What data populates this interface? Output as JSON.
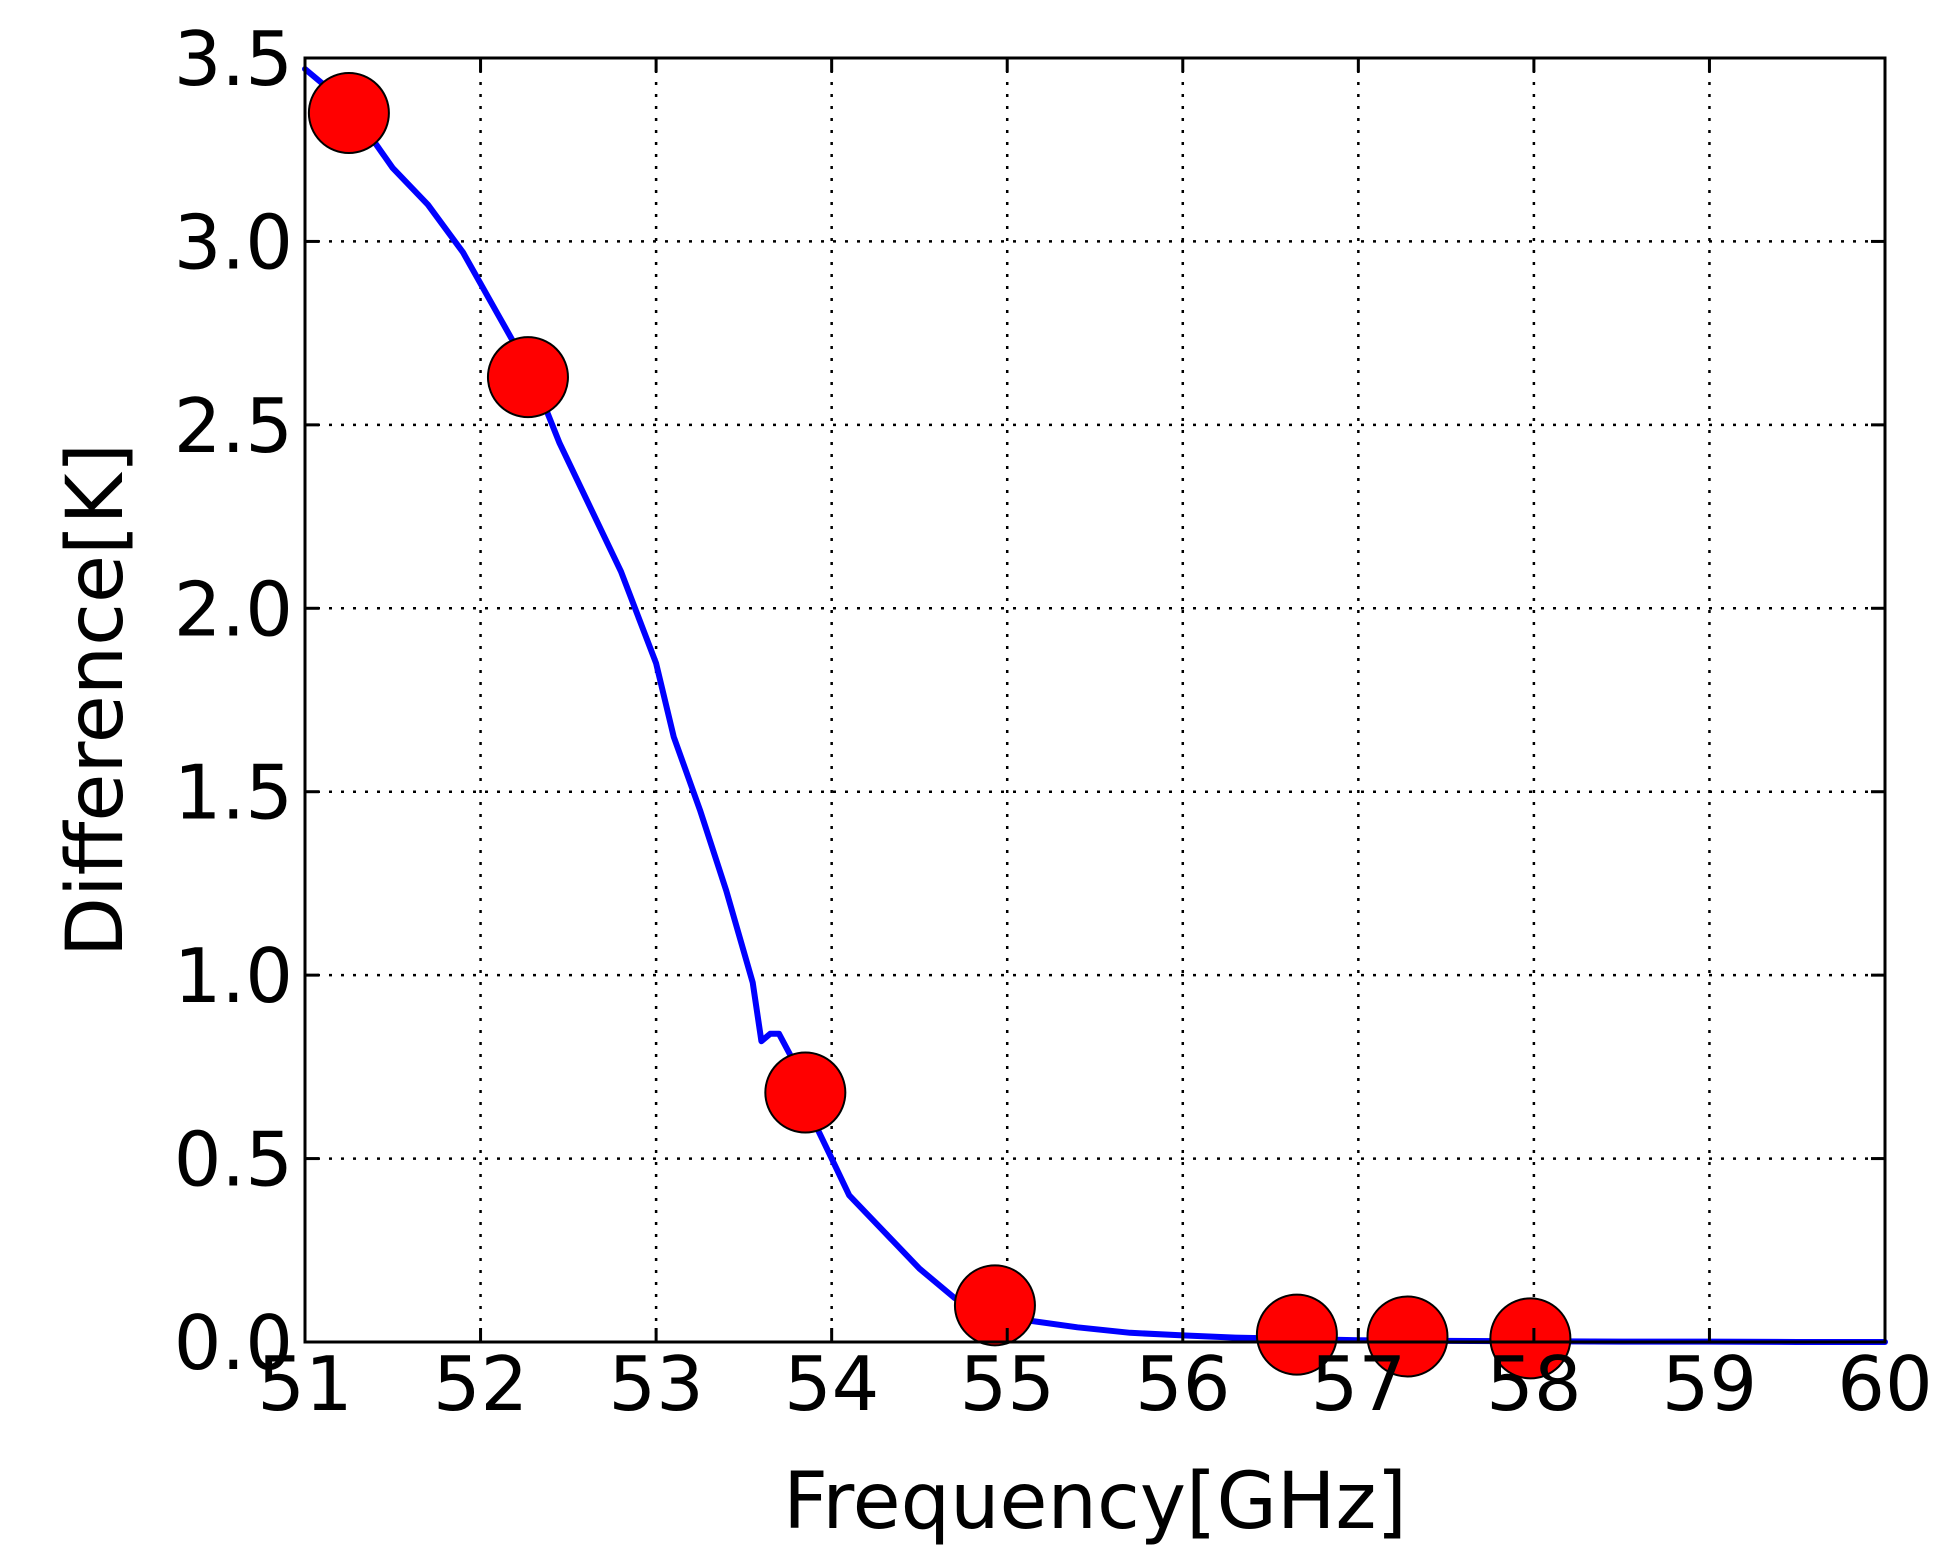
{
  "chart_data": {
    "type": "line",
    "title": "",
    "xlabel": "Frequency[GHz]",
    "ylabel": "Difference[K]",
    "xlim": [
      51,
      60
    ],
    "ylim": [
      0.0,
      3.5
    ],
    "x_ticks": [
      51,
      52,
      53,
      54,
      55,
      56,
      57,
      58,
      59,
      60
    ],
    "x_tick_labels": [
      "51",
      "52",
      "53",
      "54",
      "55",
      "56",
      "57",
      "58",
      "59",
      "60"
    ],
    "y_ticks": [
      0.0,
      0.5,
      1.0,
      1.5,
      2.0,
      2.5,
      3.0,
      3.5
    ],
    "y_tick_labels": [
      "0.0",
      "0.5",
      "1.0",
      "1.5",
      "2.0",
      "2.5",
      "3.0",
      "3.5"
    ],
    "grid": true,
    "series": [
      {
        "kind": "line",
        "color": "#0000ff",
        "x": [
          51.0,
          51.25,
          51.5,
          51.7,
          51.9,
          52.1,
          52.3,
          52.45,
          52.6,
          52.8,
          53.0,
          53.1,
          53.25,
          53.4,
          53.55,
          53.6,
          53.65,
          53.7,
          53.8,
          53.9,
          54.0,
          54.1,
          54.3,
          54.5,
          54.7,
          54.9,
          55.1,
          55.4,
          55.7,
          56.0,
          56.3,
          56.7,
          57.0,
          57.5,
          58.0,
          58.5,
          59.0,
          59.5,
          60.0
        ],
        "y": [
          3.47,
          3.37,
          3.2,
          3.1,
          2.97,
          2.8,
          2.63,
          2.45,
          2.3,
          2.1,
          1.85,
          1.65,
          1.45,
          1.23,
          0.98,
          0.82,
          0.84,
          0.84,
          0.75,
          0.6,
          0.5,
          0.4,
          0.3,
          0.2,
          0.12,
          0.09,
          0.06,
          0.04,
          0.025,
          0.018,
          0.012,
          0.008,
          0.005,
          0.003,
          0.002,
          0.001,
          0.001,
          0.0,
          0.0
        ]
      },
      {
        "kind": "scatter",
        "color": "#ff0000",
        "x": [
          51.25,
          52.27,
          53.85,
          54.93,
          56.65,
          57.28,
          57.98
        ],
        "y": [
          3.35,
          2.63,
          0.68,
          0.1,
          0.02,
          0.015,
          0.01
        ]
      }
    ]
  }
}
